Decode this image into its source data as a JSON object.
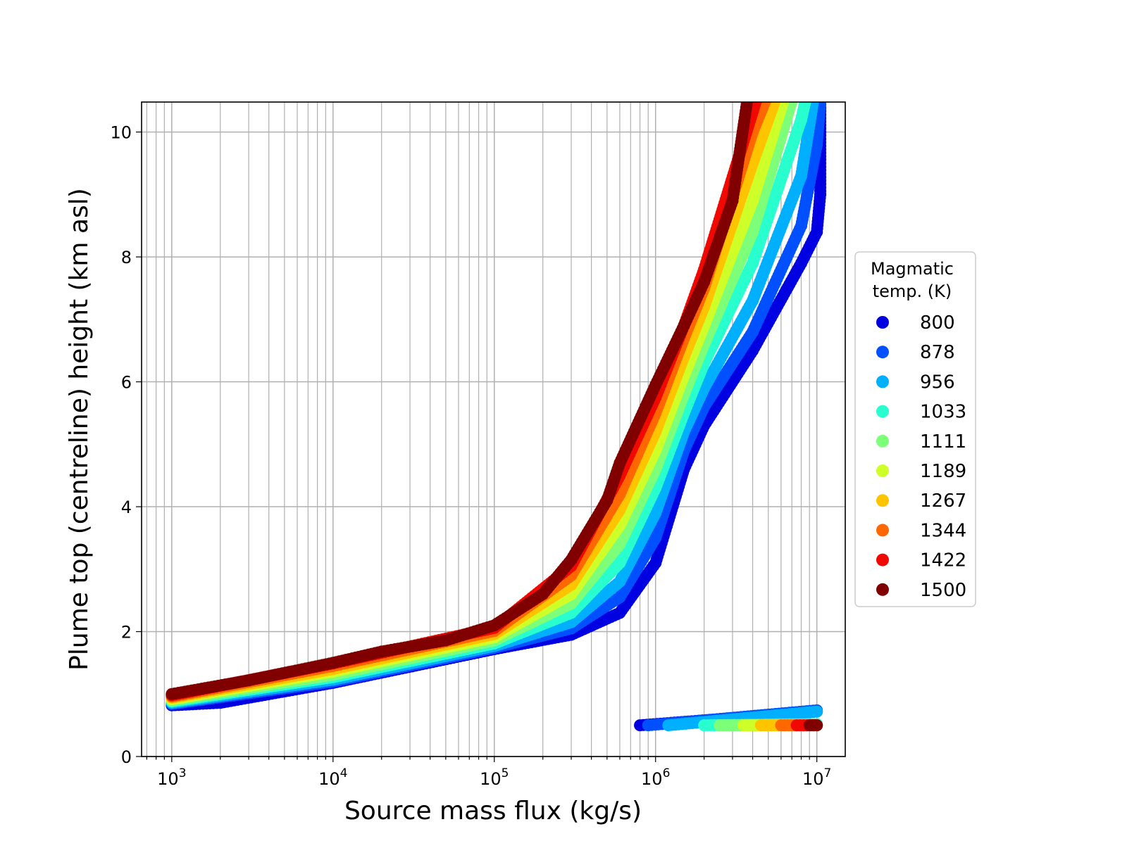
{
  "chart_data": {
    "type": "scatter",
    "xscale": "log",
    "xlabel": "Source mass flux (kg/s)",
    "ylabel": "Plume top (centreline) height (km asl)",
    "xlim": [
      650,
      15000000
    ],
    "ylim": [
      0,
      10.48
    ],
    "grid": true,
    "legend_position": "center-right-outside",
    "legend_title": "Magmatic\ntemp. (K)",
    "x_ticks": [
      {
        "value": 1000,
        "base": "10",
        "exp": "3"
      },
      {
        "value": 10000,
        "base": "10",
        "exp": "4"
      },
      {
        "value": 100000,
        "base": "10",
        "exp": "5"
      },
      {
        "value": 1000000,
        "base": "10",
        "exp": "6"
      },
      {
        "value": 10000000,
        "base": "10",
        "exp": "7"
      }
    ],
    "y_ticks": [
      {
        "value": 0,
        "label": "0"
      },
      {
        "value": 2,
        "label": "2"
      },
      {
        "value": 4,
        "label": "4"
      },
      {
        "value": 6,
        "label": "6"
      },
      {
        "value": 8,
        "label": "8"
      },
      {
        "value": 10,
        "label": "10"
      }
    ],
    "series": [
      {
        "name": "800",
        "color": "#0000e0",
        "points": [
          [
            1000,
            0.82
          ],
          [
            2000,
            0.86
          ],
          [
            10000,
            1.18
          ],
          [
            100000,
            1.72
          ],
          [
            300000,
            1.95
          ],
          [
            600000,
            2.3
          ],
          [
            1000000,
            3.1
          ],
          [
            1500000,
            4.6
          ],
          [
            2000000,
            5.3
          ],
          [
            4000000,
            6.5
          ],
          [
            8000000,
            7.9
          ],
          [
            10000000,
            8.4
          ],
          [
            10500000,
            9.0
          ],
          [
            10500000,
            10.5
          ]
        ],
        "low_branch": [
          [
            800000,
            0.5
          ],
          [
            10000000,
            0.72
          ]
        ]
      },
      {
        "name": "878",
        "color": "#0050ff",
        "points": [
          [
            1000,
            0.84
          ],
          [
            10000,
            1.2
          ],
          [
            100000,
            1.74
          ],
          [
            300000,
            2.05
          ],
          [
            600000,
            2.55
          ],
          [
            1000000,
            3.5
          ],
          [
            1500000,
            4.9
          ],
          [
            2000000,
            5.6
          ],
          [
            4000000,
            6.8
          ],
          [
            8000000,
            8.5
          ],
          [
            10000000,
            9.8
          ],
          [
            10500000,
            10.5
          ]
        ],
        "low_branch": [
          [
            900000,
            0.5
          ],
          [
            10000000,
            0.74
          ]
        ]
      },
      {
        "name": "956",
        "color": "#00b0ff",
        "points": [
          [
            1000,
            0.86
          ],
          [
            10000,
            1.23
          ],
          [
            100000,
            1.77
          ],
          [
            300000,
            2.15
          ],
          [
            600000,
            2.8
          ],
          [
            1000000,
            3.9
          ],
          [
            1500000,
            5.2
          ],
          [
            2000000,
            5.9
          ],
          [
            4000000,
            7.3
          ],
          [
            8000000,
            9.3
          ],
          [
            9500000,
            10.5
          ]
        ],
        "low_branch": [
          [
            1200000,
            0.5
          ],
          [
            10000000,
            0.72
          ]
        ]
      },
      {
        "name": "1033",
        "color": "#29ffce",
        "points": [
          [
            1000,
            0.88
          ],
          [
            10000,
            1.27
          ],
          [
            100000,
            1.81
          ],
          [
            300000,
            2.3
          ],
          [
            600000,
            3.1
          ],
          [
            1000000,
            4.3
          ],
          [
            1500000,
            5.5
          ],
          [
            2000000,
            6.3
          ],
          [
            4000000,
            7.9
          ],
          [
            8000000,
            10.2
          ],
          [
            8500000,
            10.5
          ]
        ],
        "low_branch": [
          [
            2000000,
            0.5
          ],
          [
            10000000,
            0.52
          ]
        ]
      },
      {
        "name": "1111",
        "color": "#7dff7a",
        "points": [
          [
            1000,
            0.9
          ],
          [
            10000,
            1.31
          ],
          [
            100000,
            1.86
          ],
          [
            300000,
            2.45
          ],
          [
            600000,
            3.4
          ],
          [
            1000000,
            4.6
          ],
          [
            1500000,
            5.8
          ],
          [
            2000000,
            6.6
          ],
          [
            4000000,
            8.4
          ],
          [
            7000000,
            10.5
          ]
        ],
        "low_branch": [
          [
            2500000,
            0.5
          ],
          [
            10000000,
            0.5
          ]
        ]
      },
      {
        "name": "1189",
        "color": "#ceff29",
        "points": [
          [
            1000,
            0.92
          ],
          [
            10000,
            1.36
          ],
          [
            100000,
            1.91
          ],
          [
            300000,
            2.6
          ],
          [
            600000,
            3.7
          ],
          [
            1000000,
            4.9
          ],
          [
            1500000,
            6.1
          ],
          [
            2000000,
            6.9
          ],
          [
            4000000,
            8.9
          ],
          [
            6200000,
            10.5
          ]
        ],
        "low_branch": [
          [
            3500000,
            0.5
          ],
          [
            10000000,
            0.5
          ]
        ]
      },
      {
        "name": "1267",
        "color": "#ffc400",
        "points": [
          [
            1000,
            0.94
          ],
          [
            10000,
            1.4
          ],
          [
            100000,
            1.96
          ],
          [
            300000,
            2.75
          ],
          [
            600000,
            3.95
          ],
          [
            1000000,
            5.2
          ],
          [
            1500000,
            6.4
          ],
          [
            2000000,
            7.2
          ],
          [
            4000000,
            9.5
          ],
          [
            5500000,
            10.5
          ]
        ],
        "low_branch": [
          [
            4500000,
            0.5
          ],
          [
            10000000,
            0.5
          ]
        ]
      },
      {
        "name": "1344",
        "color": "#ff6800",
        "points": [
          [
            1000,
            0.96
          ],
          [
            10000,
            1.45
          ],
          [
            100000,
            2.01
          ],
          [
            300000,
            2.9
          ],
          [
            600000,
            4.2
          ],
          [
            1000000,
            5.5
          ],
          [
            1500000,
            6.7
          ],
          [
            2000000,
            7.5
          ],
          [
            4000000,
            10.0
          ],
          [
            4800000,
            10.5
          ]
        ],
        "low_branch": [
          [
            6000000,
            0.5
          ],
          [
            10000000,
            0.5
          ]
        ]
      },
      {
        "name": "1422",
        "color": "#f10800",
        "points": [
          [
            1000,
            0.98
          ],
          [
            10000,
            1.49
          ],
          [
            100000,
            2.06
          ],
          [
            300000,
            3.05
          ],
          [
            600000,
            4.5
          ],
          [
            1000000,
            5.75
          ],
          [
            1500000,
            6.9
          ],
          [
            2000000,
            7.8
          ],
          [
            4200000,
            10.5
          ]
        ],
        "low_branch": [
          [
            7500000,
            0.5
          ],
          [
            10000000,
            0.5
          ]
        ]
      },
      {
        "name": "1500",
        "color": "#800000",
        "points": [
          [
            1000,
            1.0
          ],
          [
            3000,
            1.22
          ],
          [
            10000,
            1.5
          ],
          [
            20000,
            1.68
          ],
          [
            50000,
            1.86
          ],
          [
            100000,
            2.1
          ],
          [
            200000,
            2.6
          ],
          [
            300000,
            3.15
          ],
          [
            500000,
            4.1
          ],
          [
            600000,
            4.7
          ],
          [
            1000000,
            5.95
          ],
          [
            1500000,
            6.9
          ],
          [
            2000000,
            7.6
          ],
          [
            3000000,
            8.9
          ],
          [
            3700000,
            10.5
          ]
        ],
        "low_branch": [
          [
            9000000,
            0.5
          ],
          [
            10000000,
            0.5
          ]
        ]
      }
    ]
  }
}
